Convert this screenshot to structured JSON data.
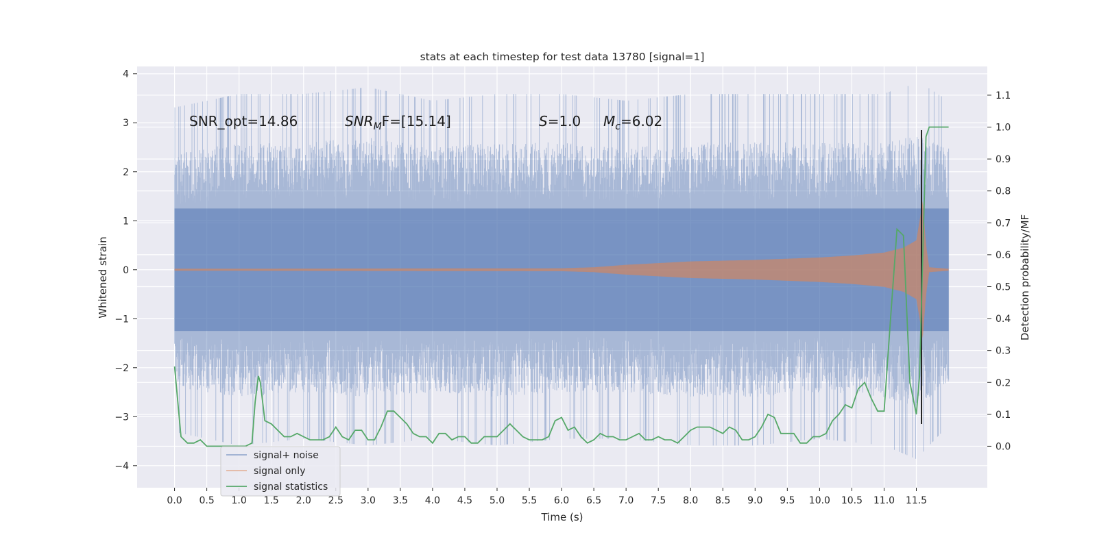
{
  "chart_data": {
    "type": "line",
    "title": "stats at each timestep for test data 13780 [signal=1]",
    "xlabel": "Time (s)",
    "ylabel": "Whitened strain",
    "y2label": "Detection probability/MF",
    "xlim": [
      -0.58,
      12.6
    ],
    "ylim": [
      -4.45,
      4.15
    ],
    "y2lim": [
      -0.13,
      1.19
    ],
    "x_ticks": [
      0.0,
      0.5,
      1.0,
      1.5,
      2.0,
      2.5,
      3.0,
      3.5,
      4.0,
      4.5,
      5.0,
      5.5,
      6.0,
      6.5,
      7.0,
      7.5,
      8.0,
      8.5,
      9.0,
      9.5,
      10.0,
      10.5,
      11.0,
      11.5
    ],
    "x_tick_labels": [
      "0.0",
      "0.5",
      "1.0",
      "1.5",
      "2.0",
      "2.5",
      "3.0",
      "3.5",
      "4.0",
      "4.5",
      "5.0",
      "5.5",
      "6.0",
      "6.5",
      "7.0",
      "7.5",
      "8.0",
      "8.5",
      "9.0",
      "9.5",
      "10.0",
      "10.5",
      "11.0",
      "11.5"
    ],
    "y_ticks": [
      -4,
      -3,
      -2,
      -1,
      0,
      1,
      2,
      3,
      4
    ],
    "y_tick_labels": [
      "−4",
      "−3",
      "−2",
      "−1",
      "0",
      "1",
      "2",
      "3",
      "4"
    ],
    "y2_ticks": [
      0.0,
      0.1,
      0.2,
      0.3,
      0.4,
      0.5,
      0.6,
      0.7,
      0.8,
      0.9,
      1.0,
      1.1
    ],
    "y2_tick_labels": [
      "0.0",
      "0.1",
      "0.2",
      "0.3",
      "0.4",
      "0.5",
      "0.6",
      "0.7",
      "0.8",
      "0.9",
      "1.0",
      "1.1"
    ],
    "grid": true,
    "legend_position": "lower-left",
    "annotations": {
      "snr_opt": "SNR_opt=14.86",
      "snr_mf_main": "SNR",
      "snr_mf_sub": "M",
      "snr_mf_rest": "F=[15.14]",
      "s_var": "S",
      "s_rest": "=1.0",
      "mc_var": "M",
      "mc_sub": "c",
      "mc_rest": "=6.02"
    },
    "series": [
      {
        "name": "signal+ noise",
        "color": "#4c72b0",
        "style": "noisy strain fluctuating roughly between -3.5 and 3.5 for t in [0, 12]",
        "envelope": {
          "x": [
            0,
            1,
            2,
            3,
            4,
            5,
            6,
            7,
            8,
            9,
            10,
            11,
            11.5,
            12
          ],
          "lower": [
            -2.4,
            -2.6,
            -2.5,
            -2.6,
            -2.5,
            -2.6,
            -2.5,
            -2.5,
            -2.6,
            -2.6,
            -2.5,
            -2.6,
            -2.8,
            -2.3
          ],
          "upper": [
            2.4,
            2.6,
            2.6,
            2.7,
            2.5,
            2.6,
            2.6,
            2.5,
            2.6,
            2.6,
            2.6,
            2.6,
            2.8,
            2.5
          ]
        },
        "range": [
          -4.1,
          3.75
        ]
      },
      {
        "name": "signal only",
        "color": "#dd8452",
        "style": "chirp with growing amplitude, merger near t=11.6 s",
        "amplitude_envelope": {
          "x": [
            0.0,
            6.0,
            6.5,
            7.0,
            8.0,
            9.0,
            10.0,
            10.5,
            11.0,
            11.3,
            11.5,
            11.6,
            11.65,
            11.7,
            12.0
          ],
          "amplitude": [
            0.02,
            0.03,
            0.05,
            0.1,
            0.17,
            0.2,
            0.25,
            0.29,
            0.35,
            0.45,
            0.6,
            1.4,
            0.5,
            0.05,
            0.02
          ]
        }
      },
      {
        "name": "signal statistics",
        "color": "#55a868",
        "axis": "right",
        "x": [
          0.0,
          0.1,
          0.2,
          0.3,
          0.4,
          0.5,
          0.6,
          0.7,
          0.8,
          0.9,
          1.0,
          1.1,
          1.2,
          1.25,
          1.3,
          1.33,
          1.4,
          1.5,
          1.6,
          1.7,
          1.8,
          1.9,
          2.0,
          2.1,
          2.2,
          2.3,
          2.4,
          2.5,
          2.6,
          2.7,
          2.8,
          2.9,
          3.0,
          3.1,
          3.2,
          3.3,
          3.4,
          3.5,
          3.6,
          3.7,
          3.8,
          3.9,
          4.0,
          4.1,
          4.2,
          4.3,
          4.4,
          4.5,
          4.6,
          4.7,
          4.8,
          4.9,
          5.0,
          5.1,
          5.2,
          5.3,
          5.4,
          5.5,
          5.6,
          5.7,
          5.8,
          5.9,
          6.0,
          6.1,
          6.2,
          6.3,
          6.4,
          6.5,
          6.6,
          6.7,
          6.8,
          6.9,
          7.0,
          7.1,
          7.2,
          7.3,
          7.4,
          7.5,
          7.6,
          7.7,
          7.8,
          7.9,
          8.0,
          8.1,
          8.2,
          8.3,
          8.4,
          8.5,
          8.6,
          8.7,
          8.8,
          8.9,
          9.0,
          9.1,
          9.2,
          9.3,
          9.4,
          9.5,
          9.6,
          9.7,
          9.8,
          9.9,
          10.0,
          10.1,
          10.2,
          10.3,
          10.4,
          10.5,
          10.6,
          10.7,
          10.8,
          10.9,
          11.0,
          11.1,
          11.2,
          11.3,
          11.4,
          11.5,
          11.55,
          11.6,
          11.65,
          11.7,
          11.8,
          11.9,
          12.0
        ],
        "values": [
          0.25,
          0.03,
          0.01,
          0.01,
          0.02,
          0.0,
          0.0,
          0.0,
          0.0,
          0.0,
          0.0,
          0.0,
          0.01,
          0.14,
          0.22,
          0.2,
          0.08,
          0.07,
          0.05,
          0.03,
          0.03,
          0.04,
          0.03,
          0.02,
          0.02,
          0.02,
          0.03,
          0.06,
          0.03,
          0.02,
          0.05,
          0.05,
          0.02,
          0.02,
          0.06,
          0.11,
          0.11,
          0.09,
          0.07,
          0.04,
          0.03,
          0.03,
          0.01,
          0.04,
          0.04,
          0.02,
          0.03,
          0.03,
          0.01,
          0.01,
          0.03,
          0.03,
          0.03,
          0.05,
          0.07,
          0.05,
          0.03,
          0.02,
          0.02,
          0.02,
          0.03,
          0.08,
          0.09,
          0.05,
          0.06,
          0.03,
          0.01,
          0.02,
          0.04,
          0.03,
          0.03,
          0.02,
          0.02,
          0.03,
          0.04,
          0.02,
          0.02,
          0.03,
          0.02,
          0.02,
          0.01,
          0.03,
          0.05,
          0.06,
          0.06,
          0.06,
          0.05,
          0.04,
          0.06,
          0.05,
          0.02,
          0.02,
          0.03,
          0.06,
          0.1,
          0.09,
          0.04,
          0.04,
          0.04,
          0.01,
          0.01,
          0.03,
          0.03,
          0.04,
          0.08,
          0.1,
          0.13,
          0.12,
          0.18,
          0.2,
          0.15,
          0.11,
          0.11,
          0.4,
          0.68,
          0.66,
          0.2,
          0.1,
          0.22,
          0.6,
          0.97,
          1.0,
          1.0,
          1.0,
          1.0
        ]
      }
    ]
  },
  "legend": {
    "items": [
      {
        "label": "signal+ noise",
        "color": "#4c72b0"
      },
      {
        "label": "signal only",
        "color": "#dd8452"
      },
      {
        "label": "signal statistics",
        "color": "#55a868"
      }
    ]
  }
}
